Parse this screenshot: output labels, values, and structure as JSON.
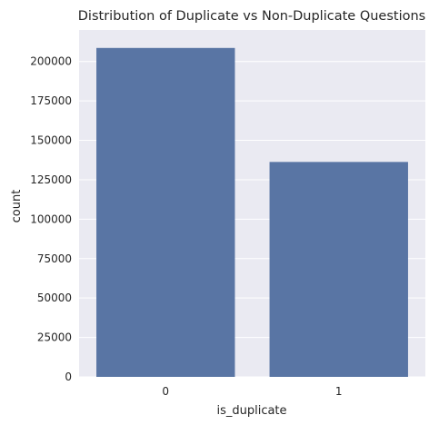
{
  "chart_data": {
    "type": "bar",
    "title": "Distribution of Duplicate vs Non-Duplicate Questions",
    "xlabel": "is_duplicate",
    "ylabel": "count",
    "categories": [
      "0",
      "1"
    ],
    "values": [
      208600,
      136300
    ],
    "ylim": [
      0,
      220000
    ],
    "yticks": [
      0,
      25000,
      50000,
      75000,
      100000,
      125000,
      150000,
      175000,
      200000
    ],
    "ytick_labels": [
      "0",
      "25000",
      "50000",
      "75000",
      "100000",
      "125000",
      "150000",
      "175000",
      "200000"
    ],
    "grid": true,
    "legend": "none",
    "colors": {
      "bar": "#5975a4",
      "plot_background": "#eaeaf2",
      "grid": "#ffffff"
    }
  }
}
